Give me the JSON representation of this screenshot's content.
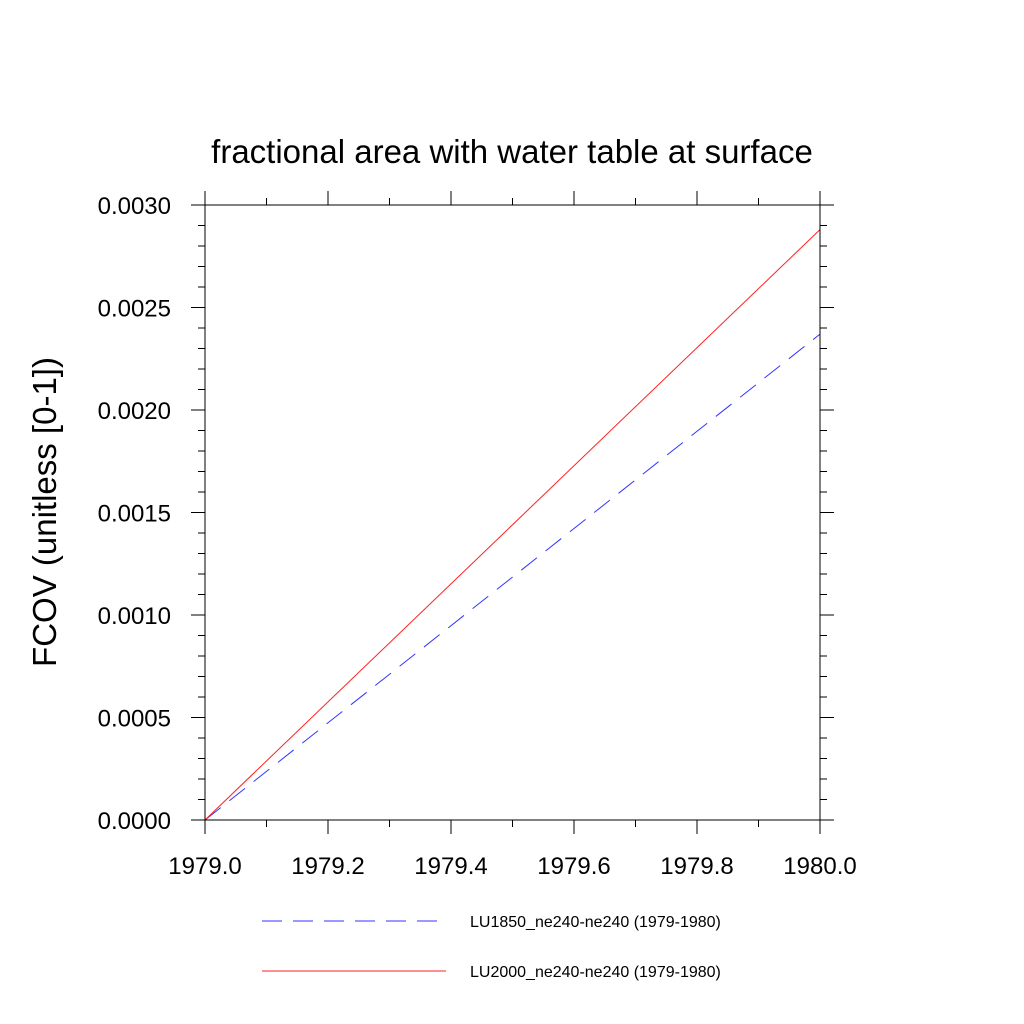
{
  "chart_data": {
    "type": "line",
    "title": "fractional area with water table at surface",
    "xlabel": "",
    "ylabel": "FCOV  (unitless [0-1])",
    "xlim": [
      1979.0,
      1980.0
    ],
    "ylim": [
      0.0,
      0.003
    ],
    "x_ticks": [
      1979.0,
      1979.2,
      1979.4,
      1979.6,
      1979.8,
      1980.0
    ],
    "x_tick_labels": [
      "1979.0",
      "1979.2",
      "1979.4",
      "1979.6",
      "1979.8",
      "1980.0"
    ],
    "y_ticks": [
      0.0,
      0.0005,
      0.001,
      0.0015,
      0.002,
      0.0025,
      0.003
    ],
    "y_tick_labels": [
      "0.0000",
      "0.0005",
      "0.0010",
      "0.0015",
      "0.0020",
      "0.0025",
      "0.0030"
    ],
    "x_minor_step": 0.1,
    "y_minor_step": 0.0001,
    "grid": false,
    "legend_position": "bottom",
    "series": [
      {
        "name": "LU1850_ne240-ne240 (1979-1980)",
        "color": "#3333ff",
        "dash": "dashed",
        "x": [
          1979.0,
          1980.0
        ],
        "y": [
          0.0,
          0.00237
        ]
      },
      {
        "name": "LU2000_ne240-ne240 (1979-1980)",
        "color": "#ff2222",
        "dash": "solid",
        "x": [
          1979.0,
          1980.0
        ],
        "y": [
          0.0,
          0.00288
        ]
      }
    ]
  }
}
